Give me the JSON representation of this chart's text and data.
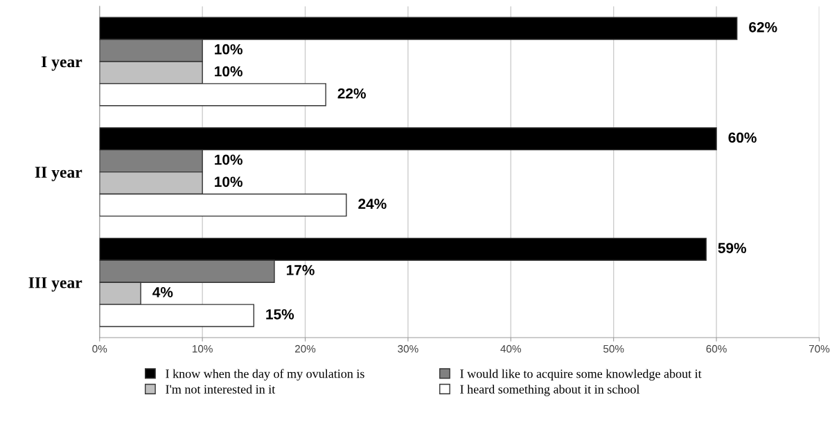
{
  "chart_data": {
    "type": "bar",
    "orientation": "horizontal",
    "categories": [
      "I year",
      "II year",
      "III year"
    ],
    "series": [
      {
        "name": "I know when the day of my ovulation is",
        "color": "#000000",
        "values": [
          62,
          60,
          59
        ],
        "value_labels": [
          "62%",
          "60%",
          "59%"
        ]
      },
      {
        "name": "I would like to acquire some knowledge about it",
        "color": "#808080",
        "values": [
          10,
          10,
          17
        ],
        "value_labels": [
          "10%",
          "10%",
          "17%"
        ]
      },
      {
        "name": "I'm not interested in it",
        "color": "#c0c0c0",
        "values": [
          10,
          10,
          4
        ],
        "value_labels": [
          "10%",
          "10%",
          "4%"
        ]
      },
      {
        "name": "I heard something about it in school",
        "color": "#ffffff",
        "values": [
          22,
          24,
          15
        ],
        "value_labels": [
          "22%",
          "24%",
          "15%"
        ]
      }
    ],
    "xlim": [
      0,
      70
    ],
    "xticks": [
      {
        "value": 0,
        "label": "0%"
      },
      {
        "value": 10,
        "label": "10%"
      },
      {
        "value": 20,
        "label": "20%"
      },
      {
        "value": 30,
        "label": "30%"
      },
      {
        "value": 40,
        "label": "40%"
      },
      {
        "value": 50,
        "label": "50%"
      },
      {
        "value": 60,
        "label": "60%"
      },
      {
        "value": 70,
        "label": "70%"
      }
    ],
    "grid": "x",
    "legend": "bottom"
  }
}
